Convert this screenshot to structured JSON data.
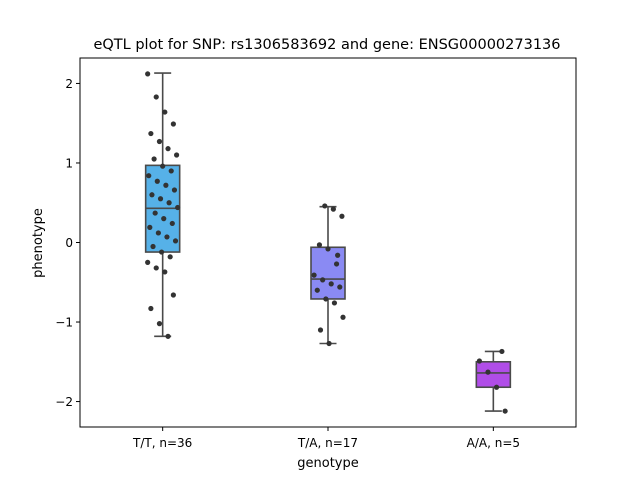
{
  "chart_data": {
    "type": "box",
    "title": "eQTL plot for SNP: rs1306583692 and gene: ENSG00000273136",
    "xlabel": "genotype",
    "ylabel": "phenotype",
    "ylim": [
      -2.32,
      2.32
    ],
    "yticks": [
      -2,
      -1,
      0,
      1,
      2
    ],
    "ytick_labels": [
      "−2",
      "−1",
      "0",
      "1",
      "2"
    ],
    "grid": false,
    "groups": [
      {
        "label": "T/T, n=36",
        "color": "#56b1e8",
        "stats": {
          "whisker_low": -1.18,
          "q1": -0.12,
          "median": 0.43,
          "q3": 0.97,
          "whisker_high": 2.13
        },
        "points": [
          2.12,
          1.83,
          1.64,
          1.49,
          1.37,
          1.27,
          1.18,
          1.1,
          1.05,
          0.96,
          0.9,
          0.84,
          0.77,
          0.72,
          0.66,
          0.6,
          0.55,
          0.5,
          0.44,
          0.37,
          0.3,
          0.24,
          0.19,
          0.12,
          0.07,
          0.02,
          -0.05,
          -0.12,
          -0.18,
          -0.25,
          -0.32,
          -0.37,
          -0.66,
          -0.83,
          -1.02,
          -1.18
        ]
      },
      {
        "label": "T/A, n=17",
        "color": "#8a8af3",
        "stats": {
          "whisker_low": -1.27,
          "q1": -0.71,
          "median": -0.46,
          "q3": -0.06,
          "whisker_high": 0.45
        },
        "points": [
          0.46,
          0.42,
          0.33,
          -0.03,
          -0.08,
          -0.27,
          -0.41,
          -0.47,
          -0.52,
          -0.56,
          -0.6,
          -0.71,
          -0.76,
          -0.94,
          -1.1,
          -1.27,
          -0.16
        ]
      },
      {
        "label": "A/A, n=5",
        "color": "#b04de8",
        "stats": {
          "whisker_low": -2.12,
          "q1": -1.82,
          "median": -1.64,
          "q3": -1.5,
          "whisker_high": -1.37
        },
        "points": [
          -1.37,
          -1.49,
          -1.63,
          -1.82,
          -2.12
        ]
      }
    ]
  }
}
